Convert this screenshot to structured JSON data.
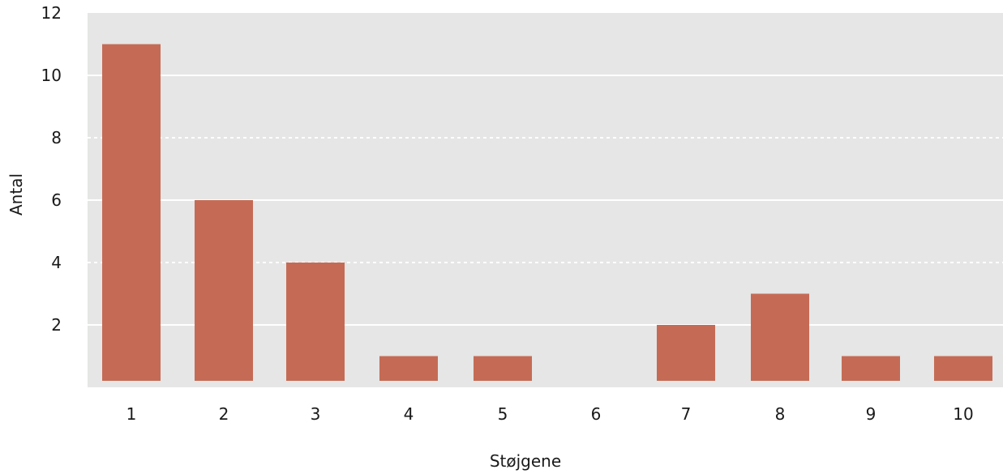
{
  "chart_data": {
    "type": "bar",
    "categories": [
      "1",
      "2",
      "3",
      "4",
      "5",
      "6",
      "7",
      "8",
      "9",
      "10"
    ],
    "values": [
      11,
      6,
      4,
      1,
      1,
      0,
      2,
      3,
      1,
      1
    ],
    "title": "",
    "xlabel": "Støjgene",
    "ylabel": "Antal",
    "ylim": [
      0,
      12
    ],
    "yticks": [
      2,
      4,
      6,
      8,
      10,
      12
    ],
    "grid": true,
    "colors": {
      "bar": "#c56b55",
      "background": "#e5e6e5",
      "grid": "#ffffff"
    }
  }
}
